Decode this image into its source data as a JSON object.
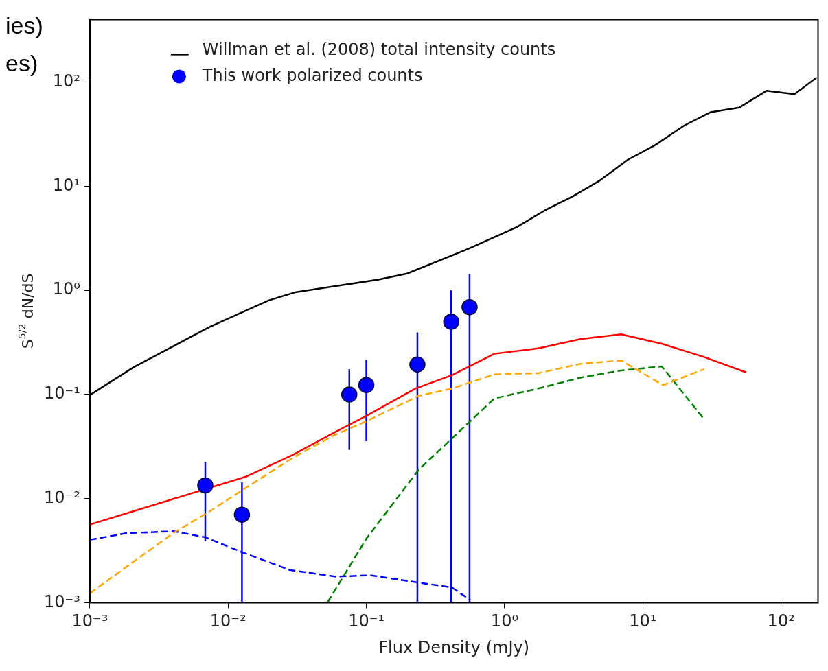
{
  "chart_data": {
    "type": "line",
    "xlabel": "Flux Density (mJy)",
    "ylabel": "S$^{5/2}$ dN/dS",
    "log": "xy",
    "grid": false,
    "legend": "top left",
    "xlim": [
      0.001,
      185
    ],
    "ylim": [
      0.001,
      400
    ],
    "xticks": [
      {
        "value": 0.001,
        "label": "10⁻³"
      },
      {
        "value": 0.01,
        "label": "10⁻²"
      },
      {
        "value": 0.1,
        "label": "10⁻¹"
      },
      {
        "value": 1,
        "label": "10⁰"
      },
      {
        "value": 10,
        "label": "10¹"
      },
      {
        "value": 100,
        "label": "10²"
      }
    ],
    "yticks": [
      {
        "value": 0.001,
        "label": "10⁻³"
      },
      {
        "value": 0.01,
        "label": "10⁻²"
      },
      {
        "value": 0.1,
        "label": "10⁻¹"
      },
      {
        "value": 1,
        "label": "10⁰"
      },
      {
        "value": 10,
        "label": "10¹"
      },
      {
        "value": 100,
        "label": "10²"
      }
    ],
    "annotations": [
      "ies)",
      "es)"
    ],
    "series": [
      {
        "name": "Willman et al. (2008) total intensity counts",
        "color": "#000000",
        "line_style": "solid",
        "marker": "none",
        "x": [
          0.001,
          0.00208,
          0.00733,
          0.0196,
          0.0305,
          0.1226,
          0.197,
          0.54,
          1.23,
          1.96,
          3.12,
          4.9,
          7.8,
          12.3,
          19.9,
          31.0,
          49.9,
          78.4,
          125,
          181
        ],
        "values": [
          0.0986,
          0.183,
          0.444,
          0.8,
          0.957,
          1.27,
          1.45,
          2.49,
          4.06,
          5.88,
          8.0,
          11.4,
          18.0,
          24.9,
          38.3,
          51.5,
          57.1,
          82.6,
          76.7,
          111
        ]
      },
      {
        "name": "This work polarized counts",
        "type": "scatter",
        "color": "#0000ff",
        "marker": "circle",
        "x": [
          0.00684,
          0.0126,
          0.0753,
          0.1,
          0.234,
          0.411,
          0.558
        ],
        "values": [
          0.0134,
          0.007,
          0.1,
          0.123,
          0.194,
          0.5,
          0.69
        ],
        "errors": [
          [
            0.0039,
            0.0226
          ],
          [
            0.001,
            0.0143
          ],
          [
            0.0294,
            0.175
          ],
          [
            0.0356,
            0.215
          ],
          [
            0.001,
            0.394
          ],
          [
            0.001,
            1.0
          ],
          [
            0.001,
            1.43
          ]
        ]
      },
      {
        "color": "#ff0000",
        "line_style": "solid",
        "marker": "none",
        "x": [
          0.001,
          0.0136,
          0.0291,
          0.0574,
          0.102,
          0.226,
          0.416,
          0.843,
          1.75,
          3.53,
          6.97,
          13.7,
          27.7,
          55.8
        ],
        "values": [
          0.00562,
          0.0163,
          0.0261,
          0.0425,
          0.0633,
          0.114,
          0.153,
          0.246,
          0.277,
          0.34,
          0.378,
          0.307,
          0.229,
          0.163
        ]
      },
      {
        "color": "#ffa500",
        "line_style": "dashed",
        "marker": "none",
        "x": [
          0.001,
          0.00406,
          0.007,
          0.0136,
          0.0305,
          0.0574,
          0.1,
          0.239,
          0.416,
          0.843,
          1.75,
          3.53,
          6.97,
          14.0,
          27.7
        ],
        "values": [
          0.00123,
          0.00471,
          0.00722,
          0.0128,
          0.0254,
          0.0401,
          0.0554,
          0.097,
          0.114,
          0.156,
          0.16,
          0.197,
          0.212,
          0.123,
          0.175
        ]
      },
      {
        "color": "#008000",
        "line_style": "dashed",
        "marker": "none",
        "x": [
          0.0525,
          0.1,
          0.239,
          0.416,
          0.843,
          1.75,
          3.53,
          6.97,
          13.7,
          27.7
        ],
        "values": [
          0.00101,
          0.00412,
          0.0189,
          0.0378,
          0.0916,
          0.114,
          0.145,
          0.17,
          0.186,
          0.058
        ]
      },
      {
        "color": "#0000ff",
        "line_style": "dashed",
        "marker": "none",
        "x": [
          0.001,
          0.00182,
          0.00406,
          0.00684,
          0.0125,
          0.0279,
          0.0601,
          0.107,
          0.223,
          0.416,
          0.565
        ],
        "values": [
          0.00401,
          0.00464,
          0.00485,
          0.00425,
          0.00307,
          0.00206,
          0.00178,
          0.00183,
          0.00158,
          0.0014,
          0.00106
        ]
      }
    ]
  }
}
